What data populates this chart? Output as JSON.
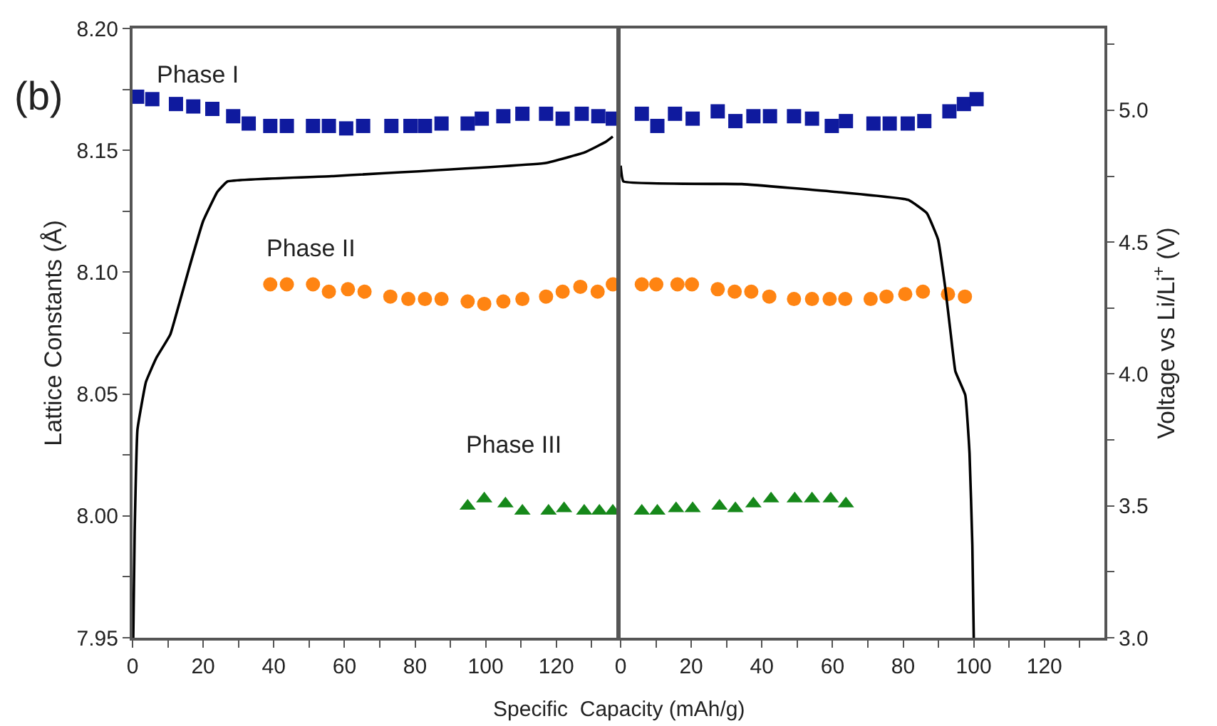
{
  "chart_data": [
    {
      "type": "scatter",
      "xlabel": "Specific  Capacity (mAh/g)",
      "ylabel": "Lattice Constants (Å)",
      "xlim": [
        0,
        137
      ],
      "xticks": [
        0,
        {
          "value": 10,
          "label": null
        },
        20,
        {
          "value": 30,
          "label": null
        },
        40,
        {
          "value": 50,
          "label": null
        },
        60,
        {
          "value": 70,
          "label": null
        },
        80,
        {
          "value": 90,
          "label": null
        },
        100,
        {
          "value": 110,
          "label": null
        },
        120,
        {
          "value": 130,
          "label": null
        }
      ],
      "ylim": [
        7.95,
        8.2
      ],
      "yticks": [
        7.95,
        {
          "value": 7.975,
          "label": null
        },
        {
          "value": 8.0,
          "label": "8.00"
        },
        {
          "value": 8.025,
          "label": null
        },
        8.05,
        {
          "value": 8.075,
          "label": null
        },
        {
          "value": 8.1,
          "label": "8.10"
        },
        {
          "value": 8.125,
          "label": null
        },
        8.15,
        {
          "value": 8.175,
          "label": null
        },
        {
          "value": 8.2,
          "label": "8.20"
        }
      ],
      "y2lim": [
        3.0,
        5.31
      ],
      "tick_labels": "xy",
      "annotations": [
        "(b)",
        "Phase I",
        "Phase II",
        "Phase III"
      ],
      "series": [
        {
          "type": "scatter",
          "marker": "square",
          "color": "#0f1a9e",
          "x": [
            1.3,
            5.6,
            12.3,
            17.2,
            22.6,
            28.5,
            32.9,
            39.0,
            43.7,
            51.1,
            55.6,
            60.5,
            65.3,
            73.3,
            78.7,
            82.8,
            87.5,
            94.9,
            98.9,
            105.0,
            110.4,
            117.1,
            121.8,
            127.2,
            131.9,
            136.0
          ],
          "values": [
            8.172,
            8.171,
            8.169,
            8.168,
            8.167,
            8.164,
            8.161,
            8.16,
            8.16,
            8.16,
            8.16,
            8.159,
            8.16,
            8.16,
            8.16,
            8.16,
            8.161,
            8.161,
            8.163,
            8.164,
            8.165,
            8.165,
            8.163,
            8.165,
            8.164,
            8.163
          ]
        },
        {
          "type": "scatter",
          "marker": "circle",
          "color": "#ff8412",
          "x": [
            39.0,
            43.7,
            51.1,
            55.6,
            61.0,
            65.7,
            73.0,
            78.1,
            82.8,
            87.5,
            94.9,
            99.6,
            105.0,
            110.4,
            117.1,
            121.8,
            126.8,
            131.7,
            136.0
          ],
          "values": [
            8.095,
            8.095,
            8.095,
            8.092,
            8.093,
            8.092,
            8.09,
            8.089,
            8.089,
            8.089,
            8.088,
            8.087,
            8.088,
            8.089,
            8.09,
            8.092,
            8.094,
            8.092,
            8.095
          ]
        },
        {
          "type": "scatter",
          "marker": "triangle",
          "color": "#16881a",
          "x": [
            94.9,
            99.6,
            105.6,
            110.4,
            117.8,
            122.2,
            127.9,
            132.2,
            136.0
          ],
          "values": [
            8.004,
            8.007,
            8.005,
            8.002,
            8.002,
            8.003,
            8.002,
            8.002,
            8.002
          ]
        },
        {
          "type": "line",
          "axis": "y2",
          "line_style": "solid",
          "color": "#000000",
          "x": [
            0.2,
            0.6,
            1.4,
            3.8,
            6.7,
            10.7,
            13.5,
            16.0,
            20.0,
            24.0,
            26.9,
            56.4,
            117.0,
            128.0,
            134.0,
            136.0
          ],
          "values": [
            3.0,
            3.4,
            3.79,
            3.97,
            4.06,
            4.15,
            4.28,
            4.4,
            4.58,
            4.69,
            4.73,
            4.75,
            4.8,
            4.84,
            4.88,
            4.9
          ]
        }
      ]
    },
    {
      "type": "scatter",
      "y2label": "Voltage vs Li/Li$^{+}$ (V)",
      "xlim": [
        0,
        137
      ],
      "xticks": [
        0,
        {
          "value": 10,
          "label": null
        },
        20,
        {
          "value": 30,
          "label": null
        },
        40,
        {
          "value": 50,
          "label": null
        },
        60,
        {
          "value": 70,
          "label": null
        },
        80,
        {
          "value": 90,
          "label": null
        },
        100,
        {
          "value": 110,
          "label": null
        },
        120,
        {
          "value": 130,
          "label": null
        }
      ],
      "ylim": [
        7.95,
        8.2
      ],
      "y2lim": [
        3.0,
        5.31
      ],
      "y2ticks": [
        {
          "value": 3.0,
          "label": "3.0"
        },
        {
          "value": 3.25,
          "label": null
        },
        3.5,
        {
          "value": 3.75,
          "label": null
        },
        {
          "value": 4.0,
          "label": "4.0"
        },
        {
          "value": 4.25,
          "label": null
        },
        4.5,
        {
          "value": 4.75,
          "label": null
        },
        {
          "value": 5.0,
          "label": "5.0"
        },
        {
          "value": 5.25,
          "label": null
        }
      ],
      "tick_labels": "xy2",
      "series": [
        {
          "type": "scatter",
          "marker": "square",
          "color": "#0f1a9e",
          "x": [
            6.0,
            10.4,
            15.4,
            20.4,
            27.5,
            32.5,
            37.6,
            42.3,
            49.1,
            54.2,
            59.8,
            63.8,
            71.6,
            76.2,
            81.3,
            86.0,
            93.1,
            97.2,
            100.8
          ],
          "values": [
            8.165,
            8.16,
            8.165,
            8.163,
            8.166,
            8.162,
            8.164,
            8.164,
            8.164,
            8.163,
            8.16,
            8.162,
            8.161,
            8.161,
            8.161,
            8.162,
            8.166,
            8.169,
            8.171
          ]
        },
        {
          "type": "scatter",
          "marker": "circle",
          "color": "#ff8412",
          "x": [
            6.0,
            10.1,
            16.1,
            20.2,
            27.5,
            32.3,
            37.0,
            42.1,
            49.1,
            54.2,
            59.2,
            63.6,
            70.8,
            75.3,
            80.6,
            85.6,
            92.7,
            97.5
          ],
          "values": [
            8.095,
            8.095,
            8.095,
            8.095,
            8.093,
            8.092,
            8.092,
            8.09,
            8.089,
            8.089,
            8.089,
            8.089,
            8.089,
            8.09,
            8.091,
            8.092,
            8.091,
            8.09
          ]
        },
        {
          "type": "scatter",
          "marker": "triangle",
          "color": "#16881a",
          "x": [
            6.0,
            10.4,
            15.7,
            20.4,
            28.0,
            32.5,
            37.6,
            42.6,
            49.3,
            54.2,
            59.5,
            63.8
          ],
          "values": [
            8.002,
            8.002,
            8.003,
            8.003,
            8.004,
            8.003,
            8.005,
            8.007,
            8.007,
            8.007,
            8.007,
            8.005
          ]
        },
        {
          "type": "line",
          "axis": "y2",
          "line_style": "solid",
          "color": "#000000",
          "x": [
            0.0,
            0.8,
            34.3,
            61.3,
            81.5,
            86.7,
            89.9,
            91.9,
            93.5,
            94.8,
            97.6,
            98.8,
            99.6,
            100.0
          ],
          "values": [
            4.79,
            4.73,
            4.72,
            4.69,
            4.66,
            4.61,
            4.51,
            4.33,
            4.15,
            4.01,
            3.92,
            3.7,
            3.35,
            3.0
          ]
        }
      ]
    }
  ]
}
